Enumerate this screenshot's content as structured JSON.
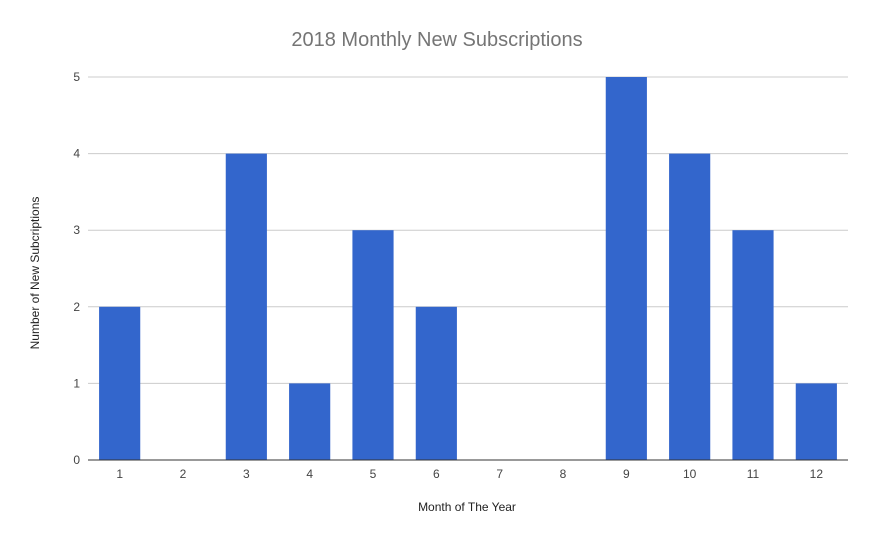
{
  "chart_data": {
    "type": "bar",
    "title": "2018 Monthly New Subscriptions",
    "xlabel": "Month of The Year",
    "ylabel": "Number of New Subcriptions",
    "categories": [
      "1",
      "2",
      "3",
      "4",
      "5",
      "6",
      "7",
      "8",
      "9",
      "10",
      "11",
      "12"
    ],
    "values": [
      2,
      0,
      4,
      1,
      3,
      2,
      0,
      0,
      5,
      4,
      3,
      1
    ],
    "ylim": [
      0,
      5
    ],
    "yticks": [
      "0",
      "1",
      "2",
      "3",
      "4",
      "5"
    ],
    "grid": true,
    "legend": "none",
    "bar_color": "#3366cc"
  }
}
